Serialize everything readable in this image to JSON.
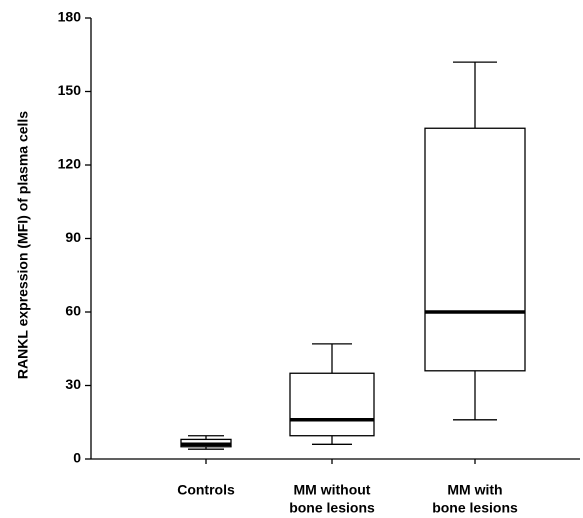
{
  "chart_data": {
    "type": "box",
    "y_label": "RANKL expression (MFI) of plasma cells",
    "categories": [
      [
        "Controls"
      ],
      [
        "MM without",
        "bone lesions"
      ],
      [
        "MM with",
        "bone lesions"
      ]
    ],
    "min": [
      4,
      6,
      16
    ],
    "q1": [
      5,
      9.5,
      36
    ],
    "median": [
      6,
      16,
      60
    ],
    "q3": [
      8,
      35,
      135
    ],
    "max": [
      9.5,
      47,
      162
    ],
    "ylim": [
      0,
      180
    ],
    "yticks": [
      0,
      30,
      60,
      90,
      120,
      150,
      180
    ],
    "color": "#000000"
  }
}
